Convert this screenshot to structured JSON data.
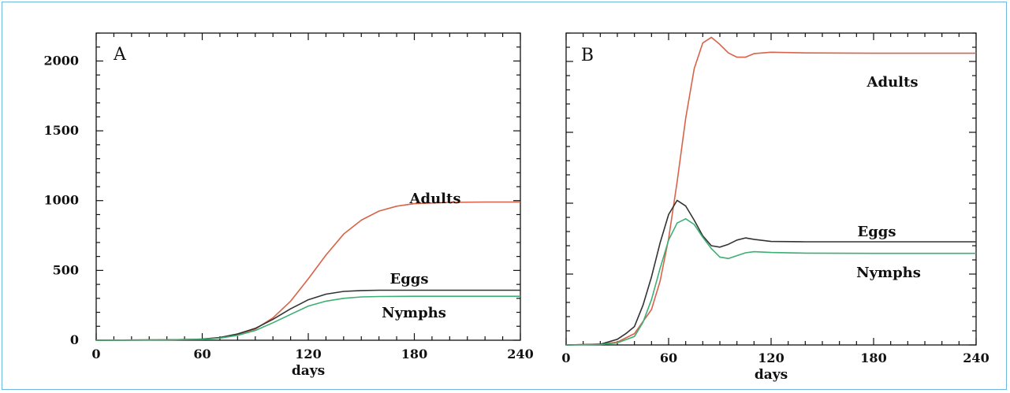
{
  "chart_data": [
    {
      "type": "line",
      "panel_label": "A",
      "xlabel": "days",
      "ylabel": "",
      "xlim": [
        0,
        240
      ],
      "ylim": [
        0,
        2200
      ],
      "x_ticks": [
        "0",
        "60",
        "120",
        "180",
        "240"
      ],
      "y_ticks": [
        "0",
        "500",
        "1000",
        "1500",
        "2000"
      ],
      "y_tick_values": [
        0,
        500,
        1000,
        1500,
        2000
      ],
      "series": [
        {
          "name": "Adults",
          "color": "#d9634a",
          "x": [
            0,
            40,
            60,
            70,
            80,
            90,
            100,
            110,
            120,
            130,
            140,
            150,
            160,
            170,
            180,
            200,
            220,
            240
          ],
          "y": [
            0,
            2,
            8,
            18,
            40,
            80,
            160,
            280,
            440,
            610,
            760,
            860,
            925,
            960,
            978,
            988,
            990,
            990
          ]
        },
        {
          "name": "Eggs",
          "color": "#333333",
          "x": [
            0,
            40,
            60,
            70,
            80,
            90,
            100,
            110,
            120,
            130,
            140,
            150,
            160,
            180,
            200,
            220,
            240
          ],
          "y": [
            0,
            2,
            8,
            20,
            45,
            85,
            150,
            225,
            290,
            330,
            350,
            356,
            358,
            358,
            358,
            358,
            358
          ]
        },
        {
          "name": "Nymphs",
          "color": "#3dae74",
          "x": [
            0,
            40,
            60,
            70,
            80,
            90,
            100,
            110,
            120,
            130,
            140,
            150,
            160,
            180,
            200,
            220,
            240
          ],
          "y": [
            0,
            2,
            6,
            15,
            35,
            70,
            125,
            185,
            245,
            280,
            300,
            310,
            313,
            315,
            315,
            315,
            315
          ]
        }
      ]
    },
    {
      "type": "line",
      "panel_label": "B",
      "xlabel": "days",
      "ylabel": "",
      "xlim": [
        0,
        240
      ],
      "ylim": [
        0,
        2200
      ],
      "x_ticks": [
        "0",
        "60",
        "120",
        "180",
        "240"
      ],
      "y_ticks": [],
      "series": [
        {
          "name": "Adults",
          "color": "#d9634a",
          "x": [
            0,
            20,
            30,
            40,
            50,
            55,
            60,
            65,
            70,
            75,
            80,
            85,
            90,
            95,
            100,
            105,
            110,
            120,
            140,
            180,
            240
          ],
          "y": [
            0,
            5,
            20,
            80,
            250,
            450,
            750,
            1150,
            1600,
            1950,
            2130,
            2170,
            2120,
            2060,
            2030,
            2030,
            2055,
            2065,
            2060,
            2058,
            2058
          ]
        },
        {
          "name": "Eggs",
          "color": "#333333",
          "x": [
            0,
            20,
            30,
            35,
            40,
            45,
            50,
            55,
            60,
            65,
            70,
            75,
            80,
            85,
            90,
            95,
            100,
            105,
            110,
            120,
            140,
            180,
            240
          ],
          "y": [
            0,
            5,
            40,
            80,
            130,
            280,
            480,
            720,
            920,
            1020,
            980,
            880,
            770,
            700,
            690,
            710,
            740,
            755,
            745,
            730,
            728,
            728,
            728
          ]
        },
        {
          "name": "Nymphs",
          "color": "#3dae74",
          "x": [
            0,
            20,
            30,
            40,
            45,
            50,
            55,
            60,
            65,
            70,
            75,
            80,
            85,
            90,
            95,
            100,
            105,
            110,
            120,
            140,
            180,
            240
          ],
          "y": [
            0,
            3,
            15,
            60,
            160,
            320,
            540,
            740,
            860,
            890,
            850,
            760,
            680,
            620,
            610,
            630,
            650,
            658,
            652,
            648,
            646,
            646
          ]
        }
      ]
    }
  ]
}
